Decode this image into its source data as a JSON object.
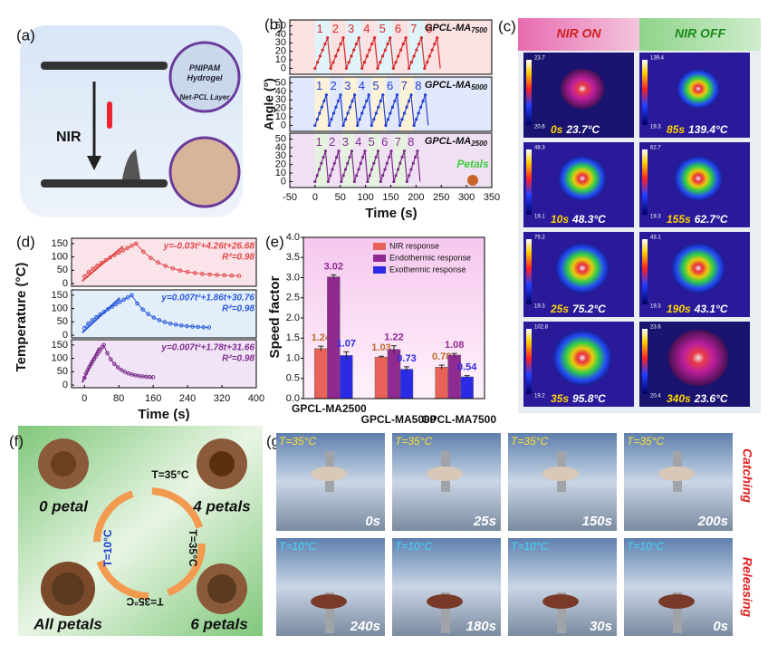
{
  "panel_labels": [
    "(a)",
    "(b)",
    "(c)",
    "(d)",
    "(e)",
    "(f)",
    "(g)"
  ],
  "a": {
    "hydrogel": "PNIPAM Hydrogel",
    "layer": "Net-PCL Layer",
    "stimulus": "NIR"
  },
  "b": {
    "ylabel": "Angle (°)",
    "xlabel": "Time (s)",
    "xlim": [
      -50,
      350
    ],
    "xticks": [
      -50,
      0,
      50,
      100,
      150,
      200,
      250,
      300,
      350
    ],
    "ylim": [
      -7,
      57
    ],
    "yticks": [
      0,
      10,
      20,
      30,
      40,
      50
    ],
    "subplots": [
      {
        "name": "GPCL-MA",
        "sub": "7500",
        "color": "#d62a2a"
      },
      {
        "name": "GPCL-MA",
        "sub": "5000",
        "color": "#2540d0"
      },
      {
        "name": "GPCL-MA",
        "sub": "2500",
        "color": "#7e2e8c"
      }
    ],
    "cycle_labels": [
      1,
      2,
      3,
      4,
      5,
      6,
      7,
      8
    ],
    "petals": "Petals"
  },
  "c": {
    "on": "NIR ON",
    "off": "NIR OFF",
    "images": [
      {
        "time": "0s",
        "temp": "23.7°C",
        "max": "23.7",
        "min": "20.6"
      },
      {
        "time": "85s",
        "temp": "139.4°C",
        "max": "139.4",
        "min": "19.3"
      },
      {
        "time": "10s",
        "temp": "48.3°C",
        "max": "48.3",
        "min": "19.1"
      },
      {
        "time": "155s",
        "temp": "62.7°C",
        "max": "62.7",
        "min": "19.3"
      },
      {
        "time": "25s",
        "temp": "75.2°C",
        "max": "75.2",
        "min": "19.3"
      },
      {
        "time": "190s",
        "temp": "43.1°C",
        "max": "43.1",
        "min": "19.3"
      },
      {
        "time": "35s",
        "temp": "95.8°C",
        "max": "102.8",
        "min": "19.2"
      },
      {
        "time": "340s",
        "temp": "23.6°C",
        "max": "23.6",
        "min": "20.4"
      }
    ]
  },
  "d": {
    "ylabel": "Temperature (°C)",
    "xlabel": "Time (s)",
    "xlim": [
      -30,
      400
    ],
    "xticks": [
      0,
      80,
      160,
      240,
      320,
      400
    ],
    "ylim": [
      -10,
      170
    ],
    "yticks": [
      0,
      50,
      100,
      150
    ],
    "fits": [
      {
        "eq": "y=-0.03t²+4.26t+26.68",
        "r2": "R²=0.98",
        "color": "#e04848"
      },
      {
        "eq": "y=0.007t²+1.86t+30.76",
        "r2": "R²=0.98",
        "color": "#2a5ad8"
      },
      {
        "eq": "y=0.007t²+1.78t+31.66",
        "r2": "R²=0.98",
        "color": "#7e2e8c"
      }
    ]
  },
  "chart_data": {
    "type": "bar",
    "title": "(e)",
    "ylabel": "Speed factor",
    "categories": [
      "GPCL-MA2500",
      "GPCL-MA5000",
      "GPCL-MA7500"
    ],
    "series": [
      {
        "name": "NIR response",
        "color": "#e8625a",
        "label_color": "#c06a2c",
        "values": [
          1.24,
          1.03,
          0.78
        ],
        "errors": [
          0.06,
          0.02,
          0.05
        ]
      },
      {
        "name": "Endothermic response",
        "color": "#8e2a90",
        "label_color": "#8e2a90",
        "values": [
          3.02,
          1.22,
          1.08
        ],
        "errors": [
          0.05,
          0.09,
          0.04
        ]
      },
      {
        "name": "Exothermic response",
        "color": "#2b2be6",
        "label_color": "#2b2be6",
        "values": [
          1.07,
          0.73,
          0.54
        ],
        "errors": [
          0.09,
          0.06,
          0.03
        ]
      }
    ],
    "ylim": [
      0,
      4
    ],
    "yticks": [
      {
        "value": 0,
        "label": "0.0"
      },
      0.5,
      {
        "value": 1,
        "label": "1.0"
      },
      1.5,
      {
        "value": 2,
        "label": "2.0"
      },
      2.5,
      {
        "value": 3,
        "label": "3.0"
      },
      3.5,
      {
        "value": 4,
        "label": "4.0"
      }
    ],
    "legend": "upper right"
  },
  "f": {
    "states": [
      "0 petal",
      "4 petals",
      "All petals",
      "6 petals"
    ],
    "heat": "T=35°C",
    "cool": "T=10°C"
  },
  "g": {
    "catching": "Catching",
    "releasing": "Releasing",
    "frames": [
      {
        "temp": "T=35°C",
        "time": "0s"
      },
      {
        "temp": "T=35°C",
        "time": "25s"
      },
      {
        "temp": "T=35°C",
        "time": "150s"
      },
      {
        "temp": "T=35°C",
        "time": "200s"
      },
      {
        "temp": "T=10°C",
        "time": "240s"
      },
      {
        "temp": "T=10°C",
        "time": "180s"
      },
      {
        "temp": "T=10°C",
        "time": "30s"
      },
      {
        "temp": "T=10°C",
        "time": "0s"
      }
    ]
  }
}
